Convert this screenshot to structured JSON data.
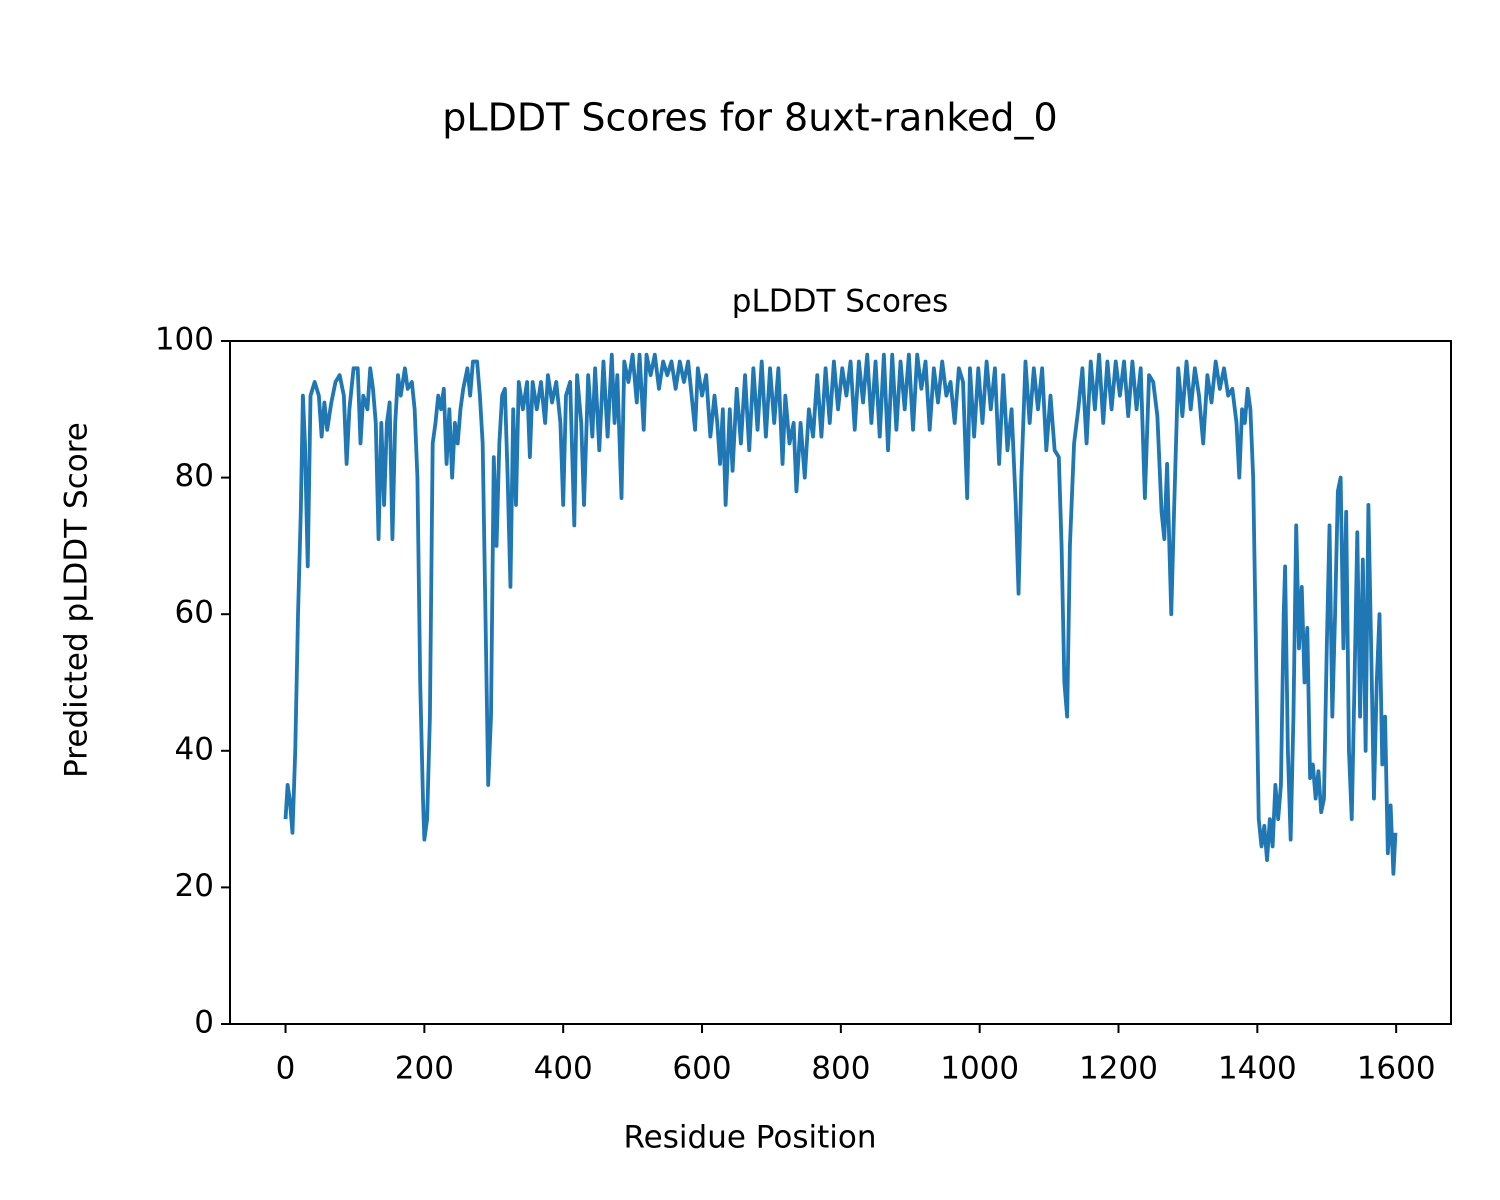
{
  "chart_data": {
    "type": "line",
    "suptitle": "pLDDT Scores for 8uxt-ranked_0",
    "title": "pLDDT Scores",
    "x_label": "Residue Position",
    "y_label": "Predicted pLDDT Score",
    "xlim": [
      -80,
      1679
    ],
    "ylim": [
      0,
      100
    ],
    "xticks": [
      0,
      200,
      400,
      600,
      800,
      1000,
      1200,
      1400,
      1600
    ],
    "yticks": [
      0,
      20,
      40,
      60,
      80,
      100
    ],
    "series": [
      {
        "color": "#1f77b4",
        "x": [
          0,
          3,
          6,
          10,
          14,
          18,
          22,
          25,
          28,
          32,
          36,
          42,
          48,
          52,
          56,
          60,
          66,
          72,
          78,
          84,
          88,
          92,
          98,
          104,
          108,
          112,
          118,
          122,
          126,
          130,
          134,
          138,
          142,
          146,
          150,
          154,
          158,
          162,
          166,
          172,
          176,
          182,
          186,
          190,
          194,
          198,
          200,
          204,
          208,
          212,
          216,
          220,
          224,
          228,
          232,
          236,
          240,
          244,
          248,
          252,
          256,
          262,
          266,
          270,
          276,
          280,
          284,
          288,
          292,
          296,
          300,
          304,
          308,
          312,
          316,
          320,
          324,
          328,
          332,
          336,
          342,
          348,
          352,
          356,
          362,
          368,
          374,
          378,
          384,
          390,
          396,
          400,
          404,
          410,
          416,
          420,
          426,
          430,
          436,
          442,
          446,
          452,
          458,
          464,
          470,
          474,
          478,
          484,
          488,
          494,
          500,
          506,
          510,
          516,
          520,
          526,
          532,
          538,
          544,
          550,
          556,
          562,
          568,
          574,
          580,
          586,
          590,
          594,
          600,
          606,
          612,
          618,
          622,
          626,
          630,
          634,
          640,
          644,
          650,
          656,
          662,
          668,
          674,
          680,
          686,
          692,
          698,
          704,
          710,
          716,
          720,
          726,
          732,
          736,
          742,
          748,
          754,
          760,
          766,
          772,
          778,
          784,
          790,
          796,
          802,
          808,
          814,
          820,
          826,
          832,
          838,
          844,
          850,
          856,
          862,
          868,
          874,
          880,
          886,
          892,
          898,
          904,
          910,
          916,
          922,
          928,
          934,
          940,
          946,
          952,
          958,
          964,
          970,
          976,
          982,
          986,
          992,
          998,
          1004,
          1010,
          1016,
          1022,
          1028,
          1034,
          1040,
          1046,
          1052,
          1056,
          1060,
          1066,
          1072,
          1078,
          1084,
          1090,
          1096,
          1102,
          1108,
          1114,
          1118,
          1122,
          1126,
          1130,
          1136,
          1142,
          1148,
          1154,
          1160,
          1166,
          1172,
          1178,
          1184,
          1190,
          1196,
          1202,
          1208,
          1214,
          1220,
          1226,
          1232,
          1238,
          1244,
          1250,
          1256,
          1262,
          1266,
          1270,
          1276,
          1280,
          1286,
          1292,
          1298,
          1304,
          1310,
          1316,
          1322,
          1328,
          1334,
          1340,
          1346,
          1352,
          1358,
          1364,
          1370,
          1374,
          1378,
          1382,
          1386,
          1390,
          1394,
          1398,
          1402,
          1406,
          1410,
          1414,
          1418,
          1422,
          1426,
          1430,
          1434,
          1438,
          1440,
          1444,
          1448,
          1452,
          1456,
          1460,
          1464,
          1468,
          1472,
          1476,
          1480,
          1484,
          1488,
          1492,
          1496,
          1500,
          1504,
          1508,
          1512,
          1516,
          1520,
          1524,
          1528,
          1532,
          1536,
          1540,
          1544,
          1548,
          1552,
          1556,
          1560,
          1564,
          1568,
          1572,
          1576,
          1580,
          1584,
          1588,
          1592,
          1596,
          1599
        ],
        "values": [
          30,
          35,
          33,
          28,
          40,
          60,
          75,
          92,
          85,
          67,
          92,
          94,
          92,
          86,
          91,
          87,
          91,
          94,
          95,
          92,
          82,
          90,
          96,
          96,
          85,
          92,
          90,
          96,
          93,
          88,
          71,
          88,
          76,
          88,
          91,
          71,
          88,
          95,
          92,
          96,
          93,
          94,
          90,
          80,
          50,
          33,
          27,
          30,
          45,
          85,
          88,
          92,
          90,
          93,
          82,
          90,
          80,
          88,
          85,
          90,
          93,
          96,
          92,
          97,
          97,
          92,
          85,
          60,
          35,
          45,
          83,
          70,
          85,
          92,
          93,
          80,
          64,
          90,
          76,
          94,
          90,
          94,
          83,
          94,
          90,
          94,
          88,
          95,
          91,
          94,
          88,
          76,
          92,
          94,
          73,
          95,
          88,
          76,
          95,
          86,
          96,
          84,
          97,
          86,
          98,
          88,
          95,
          77,
          97,
          94,
          98,
          91,
          98,
          87,
          98,
          95,
          98,
          93,
          97,
          95,
          97,
          93,
          97,
          94,
          97,
          91,
          87,
          96,
          92,
          95,
          86,
          92,
          88,
          82,
          90,
          76,
          90,
          81,
          93,
          85,
          95,
          84,
          96,
          87,
          97,
          86,
          96,
          88,
          96,
          82,
          92,
          85,
          88,
          78,
          88,
          80,
          90,
          86,
          95,
          86,
          96,
          88,
          97,
          90,
          96,
          92,
          97,
          87,
          97,
          91,
          98,
          88,
          97,
          86,
          98,
          84,
          98,
          87,
          97,
          90,
          98,
          87,
          98,
          93,
          97,
          87,
          96,
          91,
          97,
          92,
          94,
          88,
          96,
          94,
          77,
          96,
          86,
          96,
          88,
          97,
          90,
          96,
          82,
          95,
          84,
          90,
          76,
          63,
          80,
          97,
          88,
          96,
          90,
          96,
          84,
          92,
          84,
          83,
          70,
          50,
          45,
          70,
          85,
          90,
          96,
          85,
          97,
          90,
          98,
          88,
          97,
          90,
          97,
          92,
          97,
          89,
          97,
          90,
          96,
          77,
          95,
          94,
          89,
          75,
          71,
          82,
          60,
          75,
          96,
          89,
          97,
          90,
          96,
          92,
          85,
          95,
          91,
          97,
          93,
          96,
          92,
          93,
          88,
          80,
          90,
          88,
          93,
          90,
          80,
          55,
          30,
          26,
          29,
          24,
          30,
          26,
          35,
          30,
          35,
          60,
          67,
          40,
          27,
          45,
          73,
          55,
          64,
          50,
          58,
          36,
          38,
          33,
          37,
          31,
          33,
          55,
          73,
          45,
          60,
          78,
          80,
          55,
          75,
          40,
          30,
          50,
          72,
          45,
          68,
          40,
          76,
          55,
          33,
          50,
          60,
          38,
          45,
          25,
          32,
          22,
          28
        ]
      }
    ]
  }
}
